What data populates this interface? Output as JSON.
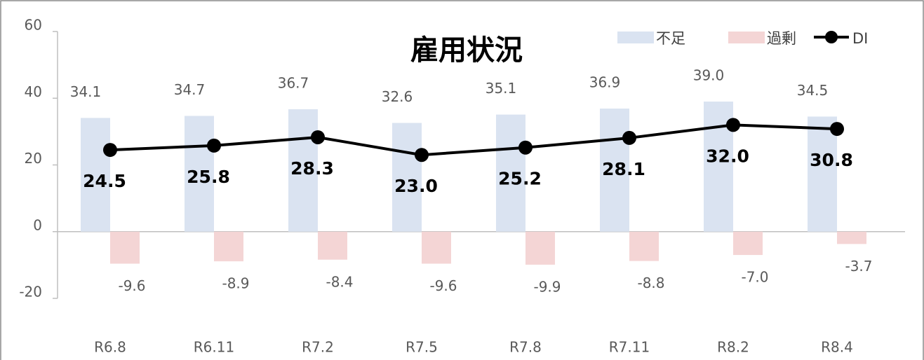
{
  "chart_data": {
    "type": "bar",
    "title": "雇用状況",
    "categories": [
      "R6.8",
      "R6.11",
      "R7.2",
      "R7.5",
      "R7.8",
      "R7.11",
      "R8.2",
      "R8.4"
    ],
    "series": [
      {
        "name": "不足",
        "type": "bar",
        "color": "#dae3f1",
        "values": [
          34.1,
          34.7,
          36.7,
          32.6,
          35.1,
          36.9,
          39.0,
          34.5
        ],
        "value_labels": [
          "34.1",
          "34.7",
          "36.7",
          "32.6",
          "35.1",
          "36.9",
          "39.0",
          "34.5"
        ]
      },
      {
        "name": "過剰",
        "type": "bar",
        "color": "#f4d5d5",
        "values": [
          -9.6,
          -8.9,
          -8.4,
          -9.6,
          -9.9,
          -8.8,
          -7.0,
          -3.7
        ],
        "value_labels": [
          "-9.6",
          "-8.9",
          "-8.4",
          "-9.6",
          "-9.9",
          "-8.8",
          "-7.0",
          "-3.7"
        ]
      },
      {
        "name": "DI",
        "type": "line",
        "color": "#000000",
        "values": [
          24.5,
          25.8,
          28.3,
          23.0,
          25.2,
          28.1,
          32.0,
          30.8
        ],
        "value_labels": [
          "24.5",
          "25.8",
          "28.3",
          "23.0",
          "25.2",
          "28.1",
          "32.0",
          "30.8"
        ]
      }
    ],
    "ylim": [
      -20,
      60
    ],
    "yticks": [
      -20,
      0,
      20,
      40,
      60
    ]
  }
}
